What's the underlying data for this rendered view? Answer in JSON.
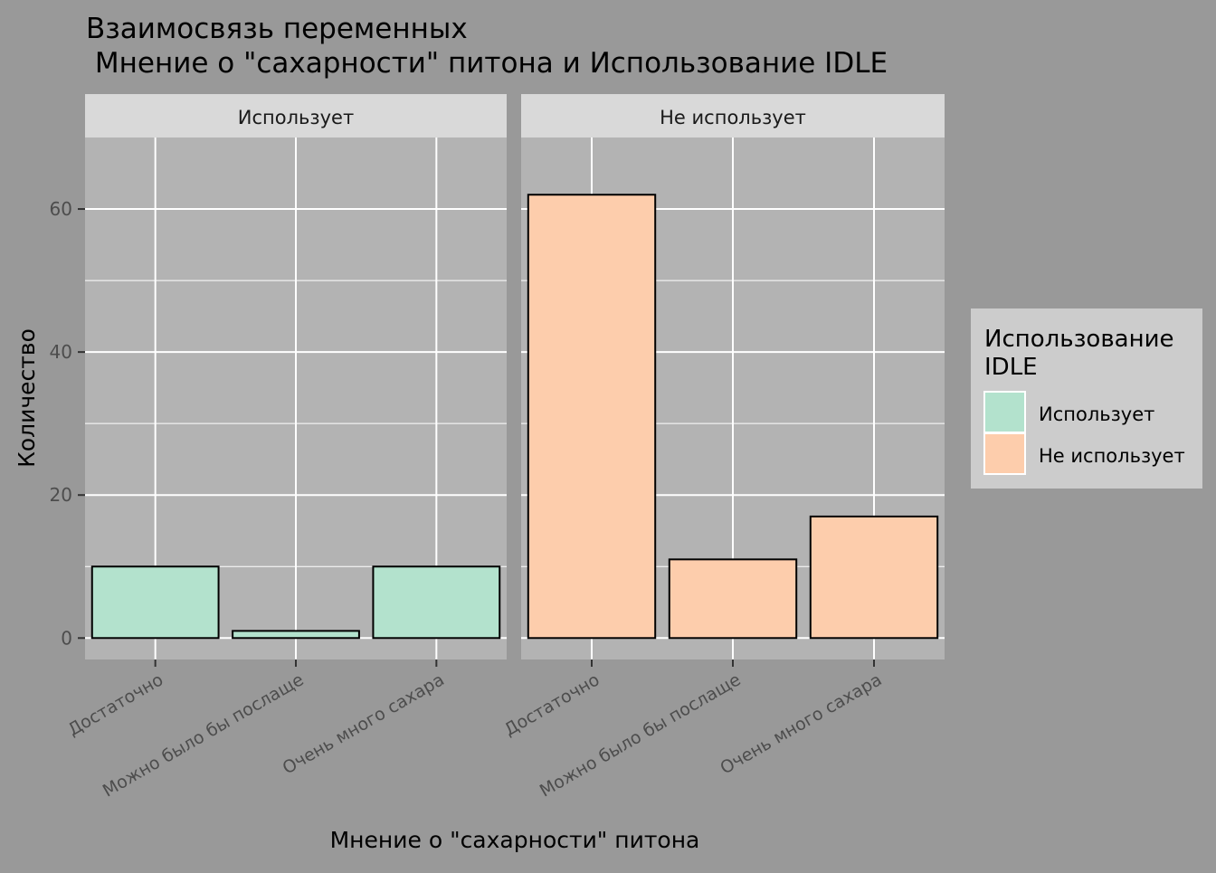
{
  "chart_data": {
    "type": "bar",
    "title_line1": "Взаимосвязь переменных",
    "title_line2": " Мнение о \"сахарности\" питона и Использование IDLE",
    "xlabel": "Мнение о \"сахарности\" питона",
    "ylabel": "Количество",
    "categories": [
      "Достаточно",
      "Можно было бы послаще",
      "Очень много сахара"
    ],
    "ylim": [
      -3,
      70
    ],
    "y_ticks": [
      0,
      20,
      40,
      60
    ],
    "y_tick_labels": [
      "0",
      "20",
      "40",
      "60"
    ],
    "facets": [
      {
        "label": "Использует",
        "series": "Использует",
        "values": [
          10,
          1,
          10
        ]
      },
      {
        "label": "Не использует",
        "series": "Не использует",
        "values": [
          62,
          11,
          17
        ]
      }
    ],
    "legend": {
      "title_line1": "Использование",
      "title_line2": "IDLE",
      "placement": "right",
      "items": [
        {
          "label": "Использует",
          "color": "#b3e2cd"
        },
        {
          "label": "Не использует",
          "color": "#fdcdac"
        }
      ]
    },
    "colors": {
      "background": "#999999",
      "panel": "#b3b3b3",
      "strip": "#d9d9d9",
      "grid": "#ffffff",
      "bar_outline": "#000000",
      "legend_background": "#cccccc"
    },
    "grid": true
  }
}
